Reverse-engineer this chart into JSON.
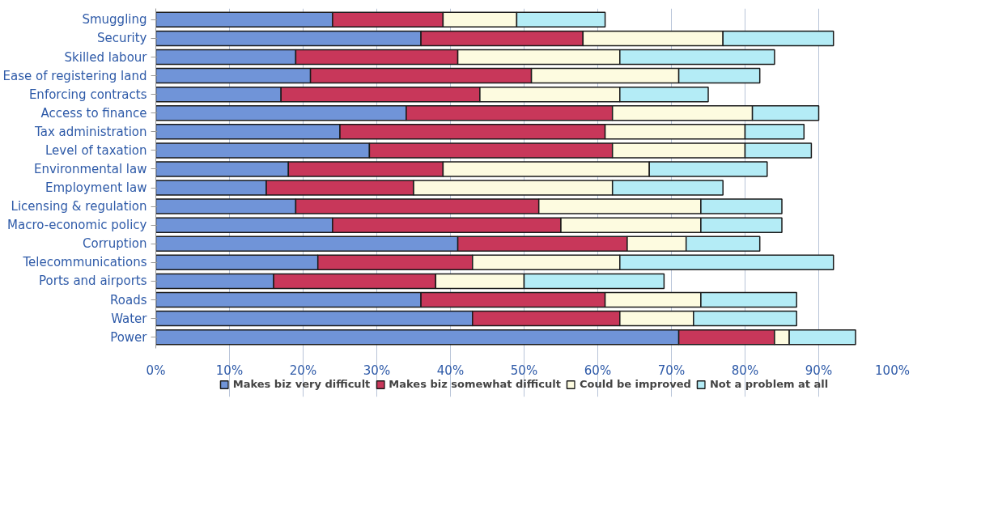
{
  "chart_data": {
    "type": "bar",
    "orientation": "horizontal",
    "stacked": true,
    "categories": [
      "Smuggling",
      "Security",
      "Skilled labour",
      "Ease of registering land",
      "Enforcing contracts",
      "Access to finance",
      "Tax administration",
      "Level of taxation",
      "Environmental law",
      "Employment law",
      "Licensing & regulation",
      "Macro-economic policy",
      "Corruption",
      "Telecommunications",
      "Ports and airports",
      "Roads",
      "Water",
      "Power"
    ],
    "series": [
      {
        "name": "Makes biz very difficult",
        "color": "#7094d8",
        "values": [
          24,
          36,
          19,
          21,
          17,
          34,
          25,
          29,
          18,
          15,
          19,
          24,
          41,
          22,
          16,
          36,
          43,
          71
        ]
      },
      {
        "name": "Makes biz somewhat difficult",
        "color": "#c8375a",
        "values": [
          15,
          22,
          22,
          30,
          27,
          28,
          36,
          33,
          21,
          20,
          33,
          31,
          23,
          21,
          22,
          25,
          20,
          13
        ]
      },
      {
        "name": "Could be improved",
        "color": "#fdfbe0",
        "values": [
          10,
          19,
          22,
          20,
          19,
          19,
          19,
          18,
          28,
          27,
          22,
          19,
          8,
          20,
          12,
          13,
          10,
          2
        ]
      },
      {
        "name": "Not a problem at all",
        "color": "#b4ecf6",
        "values": [
          12,
          15,
          21,
          11,
          12,
          9,
          8,
          9,
          16,
          15,
          11,
          11,
          10,
          29,
          19,
          13,
          14,
          9
        ]
      }
    ],
    "xlim": [
      0,
      100
    ],
    "xticks": [
      {
        "value": 0,
        "label": "0%"
      },
      {
        "value": 10,
        "label": "10%"
      },
      {
        "value": 20,
        "label": "20%"
      },
      {
        "value": 30,
        "label": "30%"
      },
      {
        "value": 40,
        "label": "40%"
      },
      {
        "value": 50,
        "label": "50%"
      },
      {
        "value": 60,
        "label": "60%"
      },
      {
        "value": 70,
        "label": "70%"
      },
      {
        "value": 80,
        "label": "80%"
      },
      {
        "value": 90,
        "label": "90%"
      },
      {
        "value": 100,
        "label": "100%"
      }
    ],
    "grid": "x",
    "legend": "bottom"
  }
}
